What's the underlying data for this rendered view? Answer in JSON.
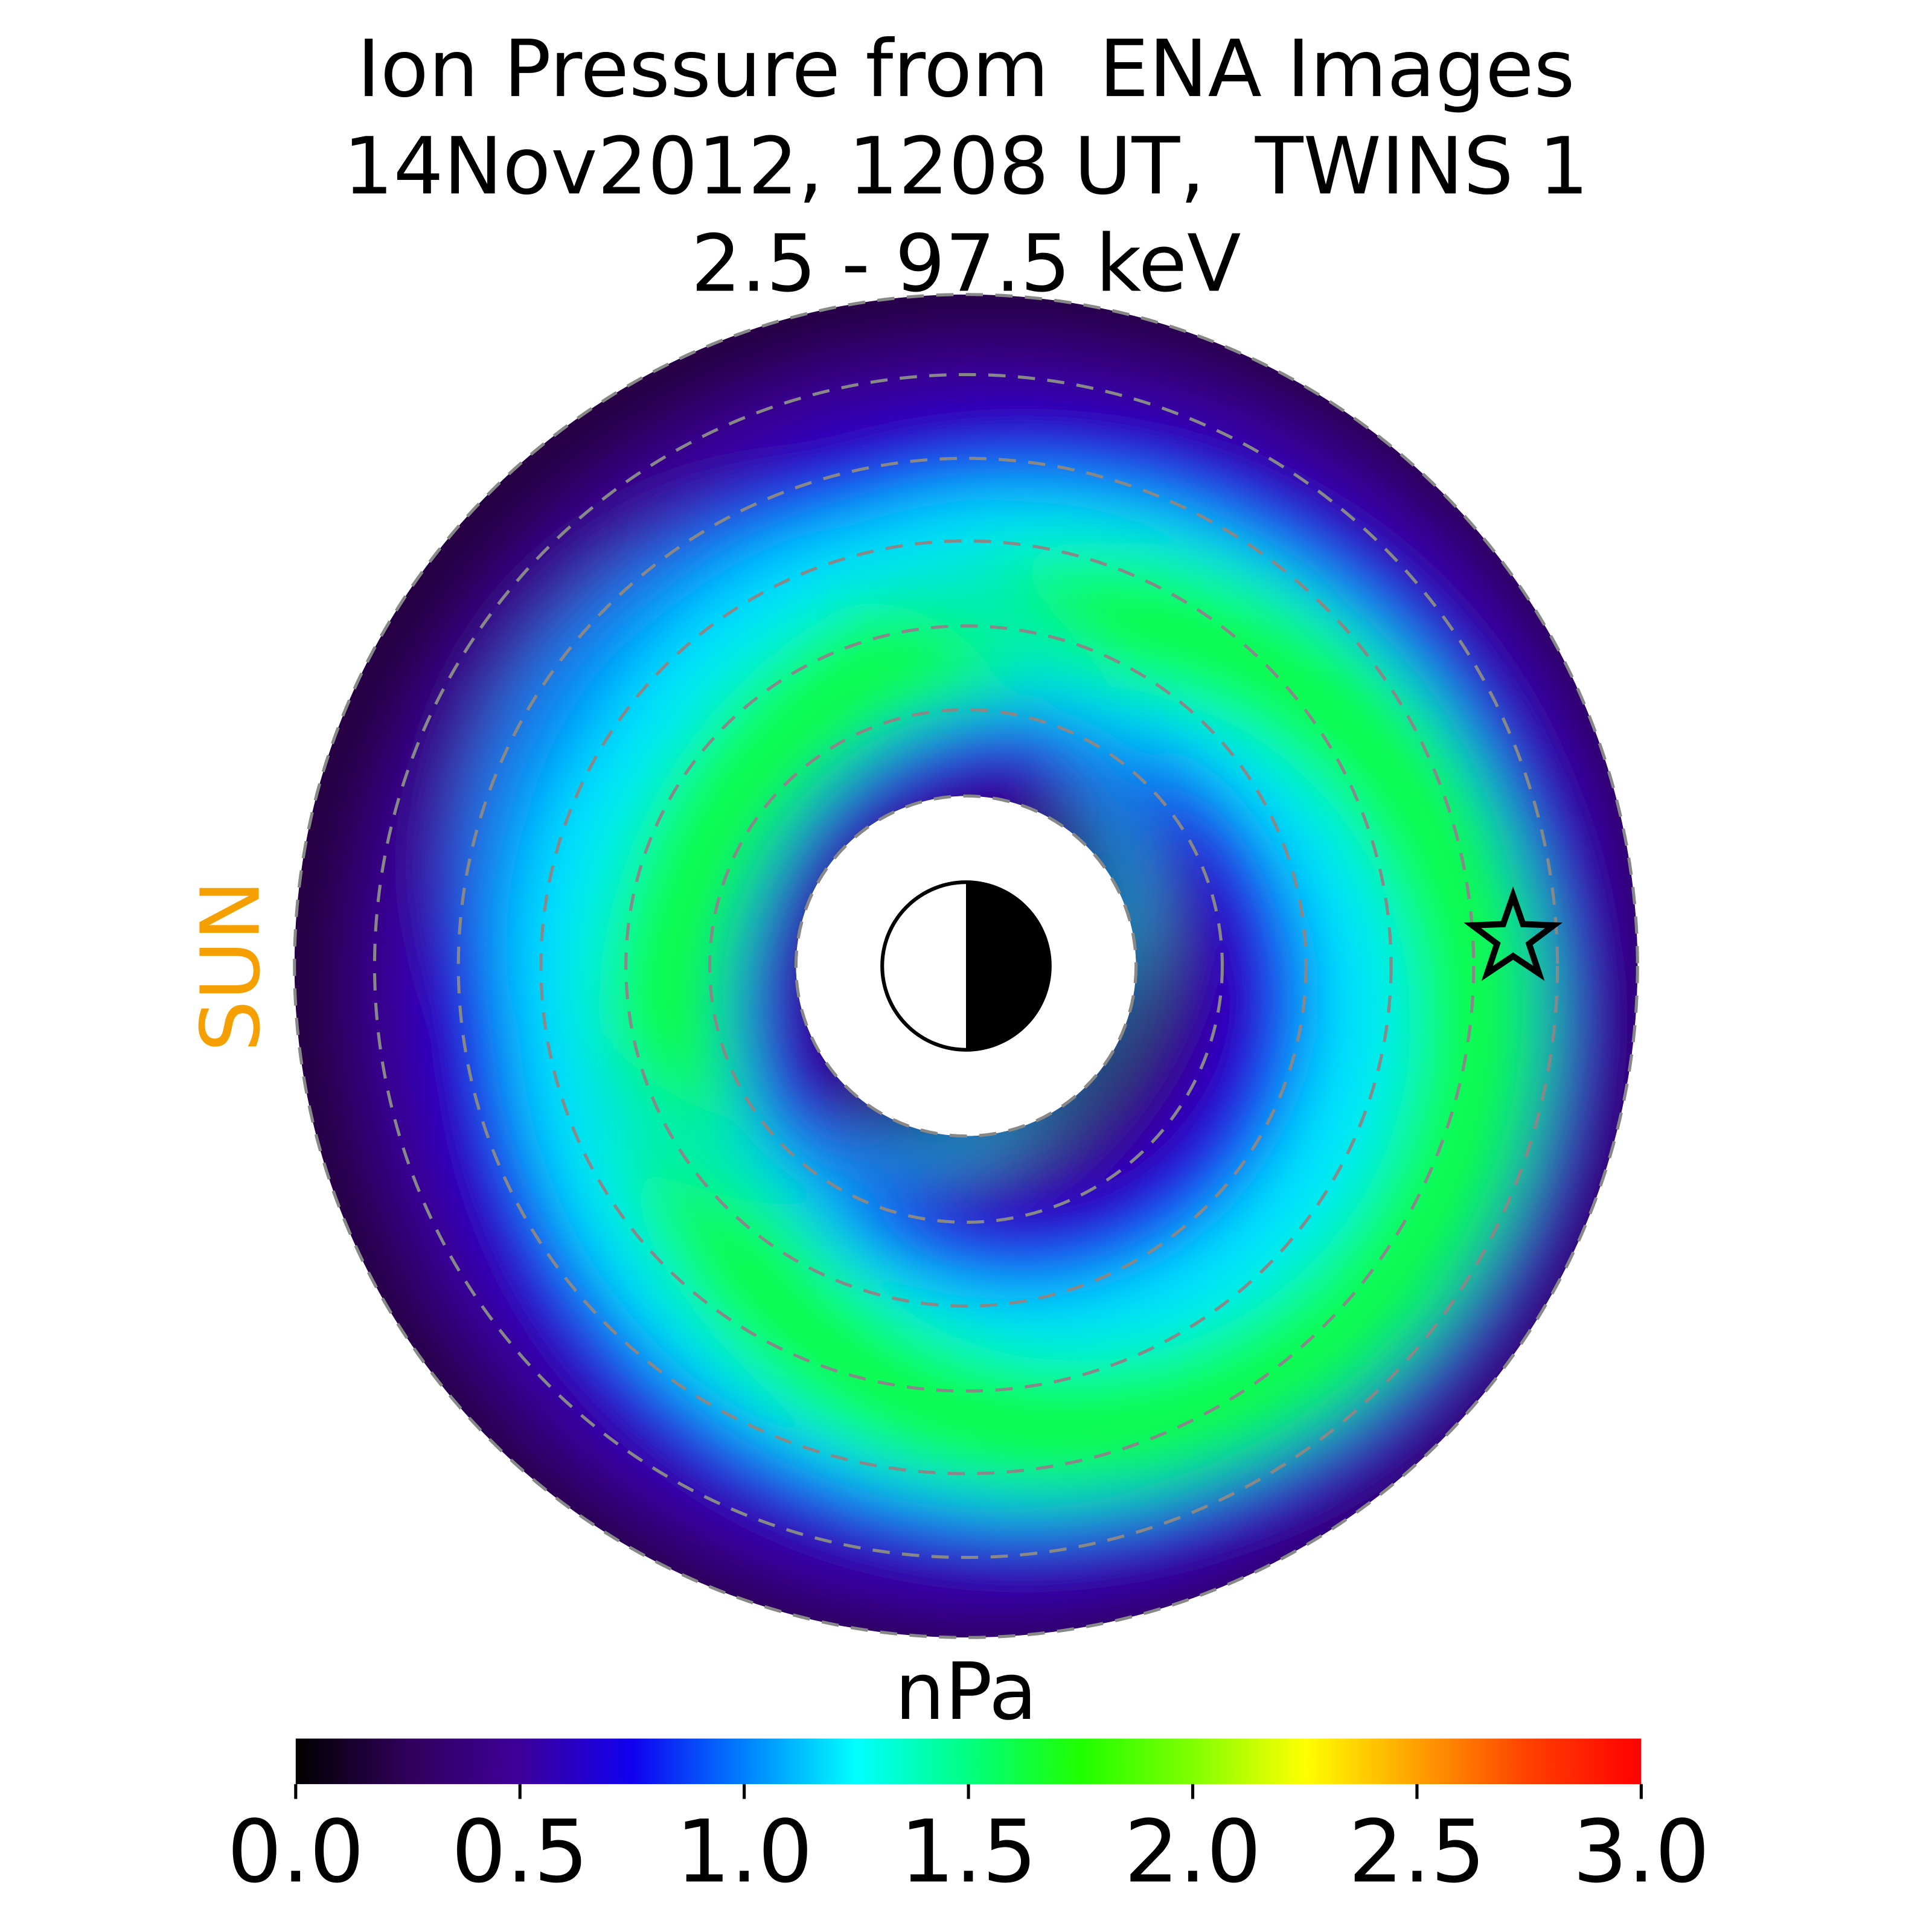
{
  "chart_data": {
    "type": "colorbar",
    "title": [
      "Ion Pressure from  ENA Images",
      "14Nov2012, 1208 UT,  TWINS 1",
      "2.5 - 97.5 keV"
    ],
    "side_label": "SUN",
    "colorbar_label": "nPa",
    "xlim": [
      0,
      3
    ],
    "xticks": [
      {
        "value": 0,
        "label": "0.0"
      },
      {
        "value": 0.5,
        "label": "0.5"
      },
      {
        "value": 1,
        "label": "1.0"
      },
      {
        "value": 1.5,
        "label": "1.5"
      },
      {
        "value": 2,
        "label": "2.0"
      },
      {
        "value": 2.5,
        "label": "2.5"
      },
      {
        "value": 3,
        "label": "3.0"
      }
    ],
    "colormap": [
      "#000000",
      "#30005a",
      "#3d009a",
      "#1000f0",
      "#0080ff",
      "#00ffff",
      "#00ff80",
      "#20ff00",
      "#80ff00",
      "#ffff00",
      "#ffa000",
      "#ff4000",
      "#ff0000"
    ]
  }
}
